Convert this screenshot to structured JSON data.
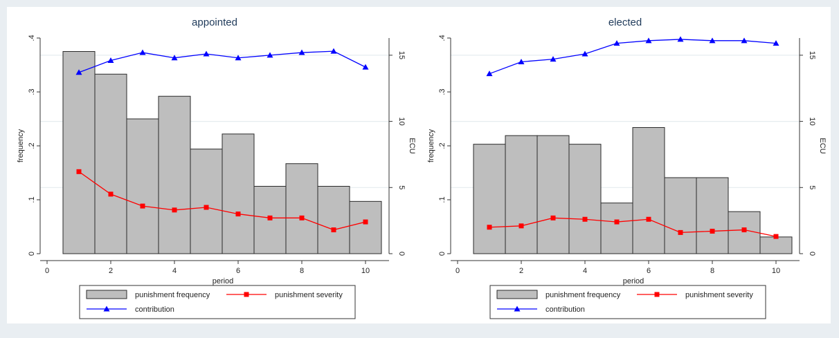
{
  "chart_data": [
    {
      "type": "bar",
      "title": "appointed",
      "xlabel": "period",
      "ylabel": "frequency",
      "y2label": "ECU",
      "xlim": [
        0,
        10
      ],
      "ylim": [
        0,
        0.4
      ],
      "y2lim": [
        0,
        16.3
      ],
      "x_ticks": [
        "0",
        "2",
        "4",
        "6",
        "8",
        "10"
      ],
      "y_ticks": [
        "0",
        ".1",
        ".2",
        ".3",
        ".4"
      ],
      "y2_ticks": [
        "0",
        "5",
        "10",
        "15"
      ],
      "x": [
        1,
        2,
        3,
        4,
        5,
        6,
        7,
        8,
        9,
        10
      ],
      "series": [
        {
          "name": "punishment frequency",
          "kind": "bar",
          "axis": "left",
          "color": "#bebebe",
          "values": [
            0.375,
            0.333,
            0.25,
            0.292,
            0.194,
            0.222,
            0.125,
            0.167,
            0.125,
            0.097
          ]
        },
        {
          "name": "punishment severity",
          "kind": "line",
          "marker": "square",
          "axis": "right",
          "color": "#ff0000",
          "values": [
            6.2,
            4.5,
            3.6,
            3.3,
            3.5,
            3.0,
            2.7,
            2.7,
            1.8,
            2.4
          ]
        },
        {
          "name": "contribution",
          "kind": "line",
          "marker": "triangle",
          "axis": "right",
          "color": "#0000ff",
          "values": [
            13.7,
            14.6,
            15.2,
            14.8,
            15.1,
            14.8,
            15.0,
            15.2,
            15.3,
            14.1
          ]
        }
      ],
      "legend": [
        "punishment frequency",
        "punishment severity",
        "contribution"
      ],
      "legend_position": "bottom"
    },
    {
      "type": "bar",
      "title": "elected",
      "xlabel": "period",
      "ylabel": "frequency",
      "y2label": "ECU",
      "xlim": [
        0,
        10
      ],
      "ylim": [
        0,
        0.4
      ],
      "y2lim": [
        0,
        16.3
      ],
      "x_ticks": [
        "0",
        "2",
        "4",
        "6",
        "8",
        "10"
      ],
      "y_ticks": [
        "0",
        ".1",
        ".2",
        ".3",
        ".4"
      ],
      "y2_ticks": [
        "0",
        "5",
        "10",
        "15"
      ],
      "x": [
        1,
        2,
        3,
        4,
        5,
        6,
        7,
        8,
        9,
        10
      ],
      "series": [
        {
          "name": "punishment frequency",
          "kind": "bar",
          "axis": "left",
          "color": "#bebebe",
          "values": [
            0.203,
            0.219,
            0.219,
            0.203,
            0.094,
            0.234,
            0.141,
            0.141,
            0.078,
            0.031
          ]
        },
        {
          "name": "punishment severity",
          "kind": "line",
          "marker": "square",
          "axis": "right",
          "color": "#ff0000",
          "values": [
            2.0,
            2.1,
            2.7,
            2.6,
            2.4,
            2.6,
            1.6,
            1.7,
            1.8,
            1.3
          ]
        },
        {
          "name": "contribution",
          "kind": "line",
          "marker": "triangle",
          "axis": "right",
          "color": "#0000ff",
          "values": [
            13.6,
            14.5,
            14.7,
            15.1,
            15.9,
            16.1,
            16.2,
            16.1,
            16.1,
            15.9
          ]
        }
      ],
      "legend": [
        "punishment frequency",
        "punishment severity",
        "contribution"
      ],
      "legend_position": "bottom"
    }
  ]
}
